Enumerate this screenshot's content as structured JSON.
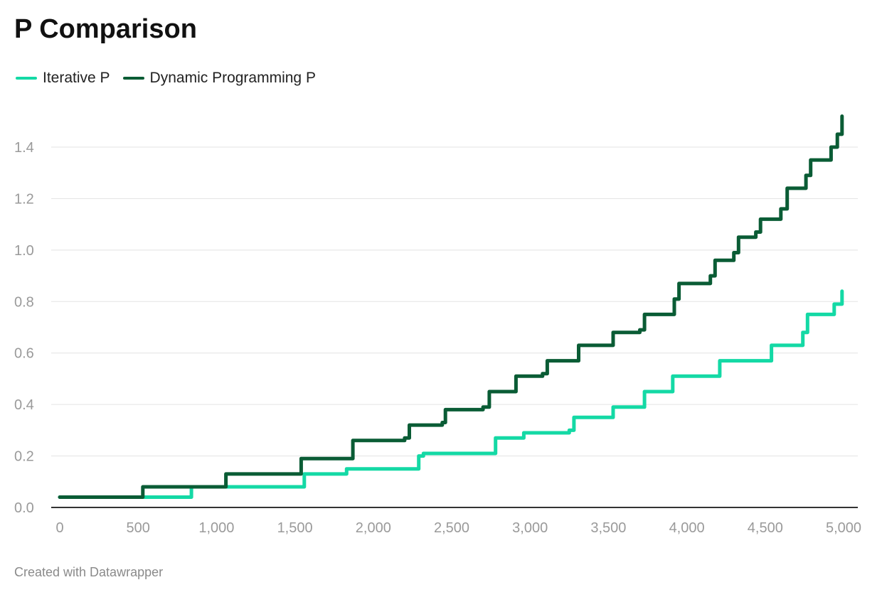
{
  "header": {
    "title": "P Comparison"
  },
  "footer": {
    "text": "Created with Datawrapper"
  },
  "chart_data": {
    "type": "line",
    "title": "P Comparison",
    "xlabel": "",
    "ylabel": "",
    "xlim": [
      0,
      5000
    ],
    "ylim": [
      0,
      1.4
    ],
    "x_ticks": [
      0,
      500,
      1000,
      1500,
      2000,
      2500,
      3000,
      3500,
      4000,
      4500,
      5000
    ],
    "x_tick_labels": [
      "0",
      "500",
      "1,000",
      "1,500",
      "2,000",
      "2,500",
      "3,000",
      "3,500",
      "4,000",
      "4,500",
      "5,000"
    ],
    "y_ticks": [
      0,
      0.2,
      0.4,
      0.6,
      0.8,
      1.0,
      1.2,
      1.4
    ],
    "y_tick_labels": [
      "0.0",
      "0.2",
      "0.4",
      "0.6",
      "0.8",
      "1.0",
      "1.2",
      "1.4"
    ],
    "grid": true,
    "legend_position": "top-left",
    "series": [
      {
        "name": "Iterative P",
        "color": "#14d9a5",
        "x": [
          0,
          500,
          520,
          820,
          840,
          1040,
          1060,
          1530,
          1560,
          1800,
          1830,
          2260,
          2290,
          2320,
          2750,
          2780,
          2920,
          2960,
          3250,
          3280,
          3500,
          3530,
          3700,
          3730,
          3880,
          3910,
          4180,
          4210,
          4500,
          4540,
          4740,
          4770,
          4900,
          4940,
          4960,
          4990
        ],
        "y": [
          0.04,
          0.04,
          0.04,
          0.04,
          0.08,
          0.08,
          0.08,
          0.08,
          0.13,
          0.13,
          0.15,
          0.15,
          0.2,
          0.21,
          0.21,
          0.27,
          0.27,
          0.29,
          0.3,
          0.35,
          0.35,
          0.39,
          0.39,
          0.45,
          0.45,
          0.51,
          0.51,
          0.57,
          0.57,
          0.63,
          0.68,
          0.75,
          0.75,
          0.79,
          0.79,
          0.84
        ]
      },
      {
        "name": "Dynamic Programming P",
        "color": "#0a5c35",
        "x": [
          0,
          500,
          530,
          1040,
          1060,
          1520,
          1540,
          1840,
          1870,
          2200,
          2230,
          2440,
          2460,
          2700,
          2740,
          2880,
          2910,
          3080,
          3110,
          3270,
          3310,
          3500,
          3530,
          3700,
          3730,
          3920,
          3950,
          4150,
          4180,
          4300,
          4330,
          4440,
          4470,
          4600,
          4640,
          4760,
          4790,
          4920,
          4960,
          4990
        ],
        "y": [
          0.04,
          0.04,
          0.08,
          0.08,
          0.13,
          0.13,
          0.19,
          0.19,
          0.26,
          0.27,
          0.32,
          0.33,
          0.38,
          0.39,
          0.45,
          0.45,
          0.51,
          0.52,
          0.57,
          0.57,
          0.63,
          0.63,
          0.68,
          0.69,
          0.75,
          0.81,
          0.87,
          0.9,
          0.96,
          0.99,
          1.05,
          1.07,
          1.12,
          1.16,
          1.24,
          1.29,
          1.35,
          1.4,
          1.45,
          1.52
        ]
      }
    ]
  }
}
